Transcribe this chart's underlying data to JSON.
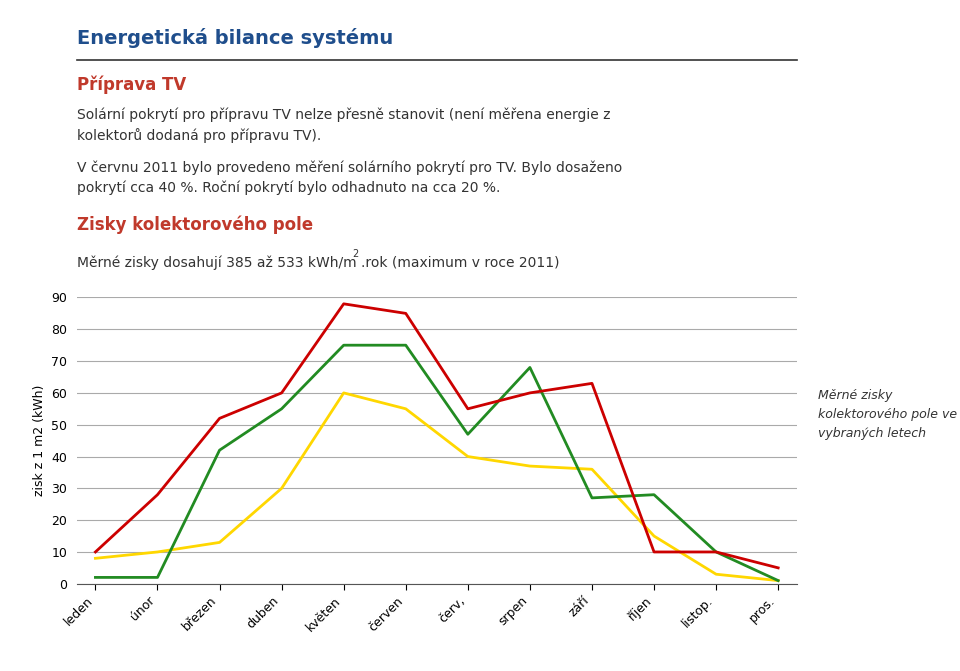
{
  "title": "Energetická bilance systému",
  "subtitle1": "Příprava TV",
  "subtitle2": "Solární pokrytí pro přípravu TV nelze přesně stanovit (není měřena energie z\nkolektorů dodaná pro přípravu TV).",
  "subtitle3": "V červnu 2011 bylo provedeno měření solárního pokrytí pro TV. Bylo dosaženo\npokrytí cca 40 %. Roční pokrytí bylo odhadnuto na cca 20 %.",
  "section2": "Zisky kolektorového pole",
  "section2_body": "Měrné zisky dosahují 385 až 533 kWh/m",
  "section2_superscript": "2",
  "section2_body2": ".rok (maximum v roce 2011)",
  "annotation_legend": "Měrné zisky\nkolektorového pole ve\nvybraných letech",
  "months": [
    "leden",
    "únor",
    "březen",
    "duben",
    "květen",
    "červen",
    "červ,",
    "srpen",
    "září",
    "říjen",
    "listop.",
    "pros."
  ],
  "series": {
    "2005": [
      8,
      10,
      13,
      30,
      60,
      55,
      40,
      37,
      36,
      15,
      3,
      1
    ],
    "2010": [
      2,
      2,
      42,
      55,
      75,
      75,
      47,
      68,
      27,
      28,
      10,
      1
    ],
    "2011": [
      10,
      28,
      52,
      60,
      88,
      85,
      55,
      60,
      63,
      10,
      10,
      5
    ]
  },
  "colors": {
    "2005": "#FFD700",
    "2010": "#228B22",
    "2011": "#CC0000"
  },
  "ylim": [
    0,
    90
  ],
  "yticks": [
    0,
    10,
    20,
    30,
    40,
    50,
    60,
    70,
    80,
    90
  ],
  "ylabel": "zisk z 1 m2 (kWh)",
  "title_color": "#1F4E8C",
  "subtitle1_color": "#C0392B",
  "section2_color": "#C0392B",
  "background_color": "#FFFFFF",
  "grid_color": "#AAAAAA",
  "line_separator_color": "#333333"
}
